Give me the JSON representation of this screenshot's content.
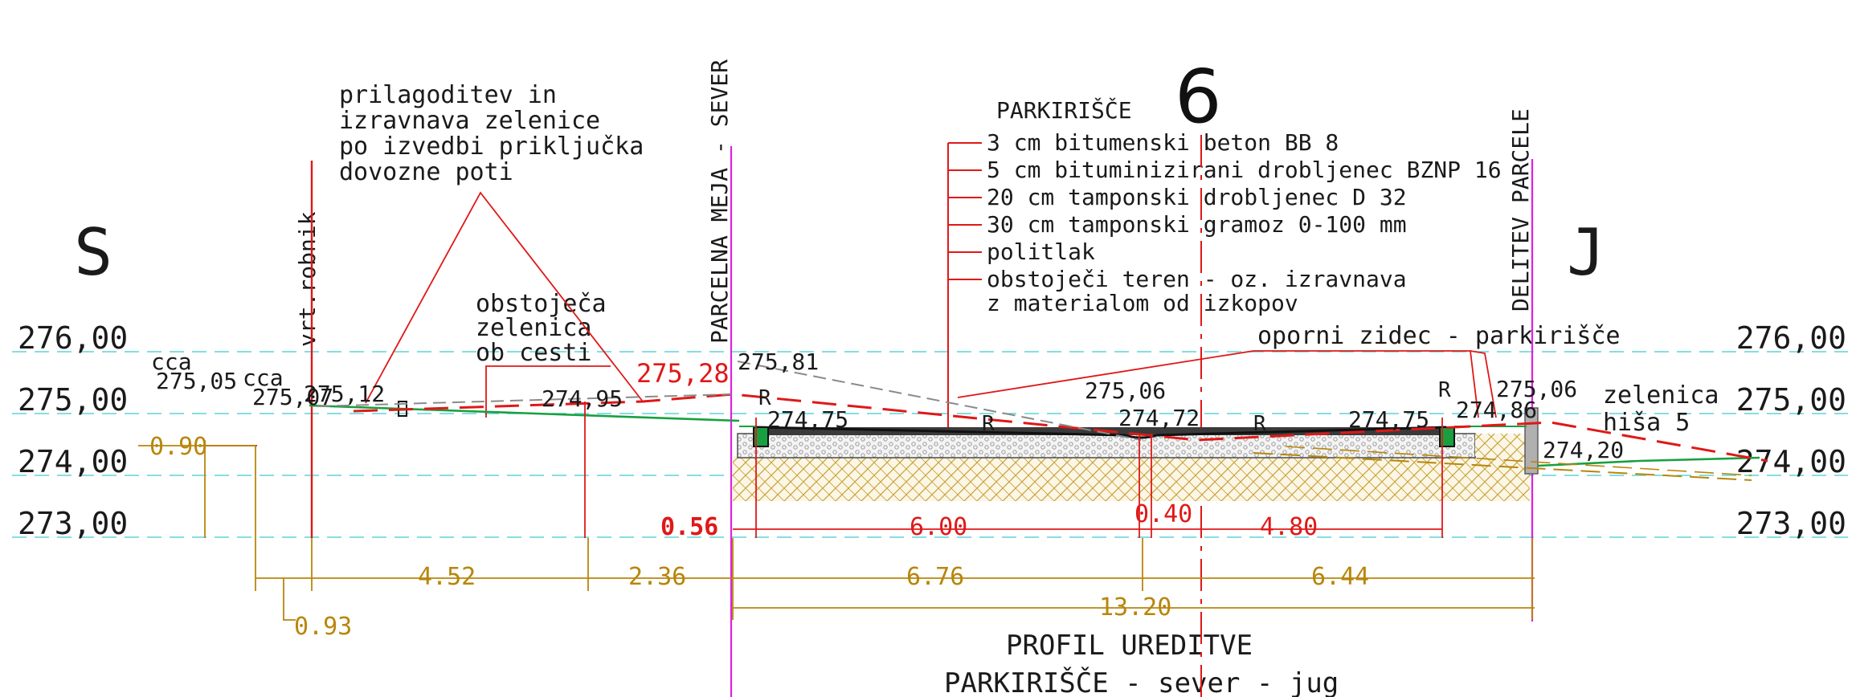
{
  "colors": {
    "background": "#ffffff",
    "text": "#1a1a1a",
    "cyan": "#5fd3d8",
    "red": "#e01818",
    "magenta": "#e020e0",
    "green": "#18a040",
    "olive": "#b8860b",
    "gray": "#8a8a8a"
  },
  "icons": {
    "south": "direction-S-icon",
    "north": "direction-J-icon",
    "curb": "R-curb-marker-icon"
  },
  "title": {
    "big_number": "6",
    "line1": "PROFIL UREDITVE",
    "line2": "PARKIRIŠČE - sever - jug"
  },
  "directions": {
    "left": "S",
    "right": "J"
  },
  "elevations": [
    "276,00",
    "275,00",
    "274,00",
    "273,00"
  ],
  "parking": {
    "heading": "PARKIRIŠČE",
    "layers": [
      "3 cm bitumenski beton BB 8",
      "5 cm bituminizirani drobljenec BZNP 16",
      "20 cm tamponski drobljenec D 32",
      "30 cm tamponski gramoz 0-100 mm",
      "politlak",
      "obstoječi teren - oz. izravnava",
      "z materialom od izkopov"
    ]
  },
  "labels": {
    "adjust_green": [
      "prilagoditev in",
      "izravnava zelenice",
      "po izvedbi priključka",
      "dovozne poti"
    ],
    "existing_green": [
      "obstoječa",
      "zelenica",
      "ob cesti"
    ],
    "curb_vertical": "vrt.robnik",
    "boundary_north": "PARCELNA MEJA - SEVER",
    "boundary_split": "DELITEV PARCELE",
    "retaining_wall": "oporni zidec - parkirišče",
    "green_house": [
      "zelenica",
      "hiša 5"
    ],
    "r_marks": [
      "R",
      "R",
      "R",
      "R"
    ]
  },
  "heights": {
    "cca1": "cca",
    "h27505": "275,05",
    "cca2": "cca",
    "h27507": "275,07",
    "h27512": "275,12",
    "h27495": "274,95",
    "h27528": "275,28",
    "h27581": "275,81",
    "h27475a": "274,75",
    "h27506a": "275,06",
    "h27472": "274,72",
    "h27475b": "274,75",
    "h27486": "274,86",
    "h27506b": "275,06",
    "h27420": "274,20"
  },
  "dimensions": {
    "d090": "0.90",
    "d056": "0.56",
    "d600": "6.00",
    "d040": "0.40",
    "d480": "4.80",
    "d452": "4.52",
    "d236": "2.36",
    "d676": "6.76",
    "d644": "6.44",
    "d093": "0.93",
    "d1320": "13.20"
  }
}
